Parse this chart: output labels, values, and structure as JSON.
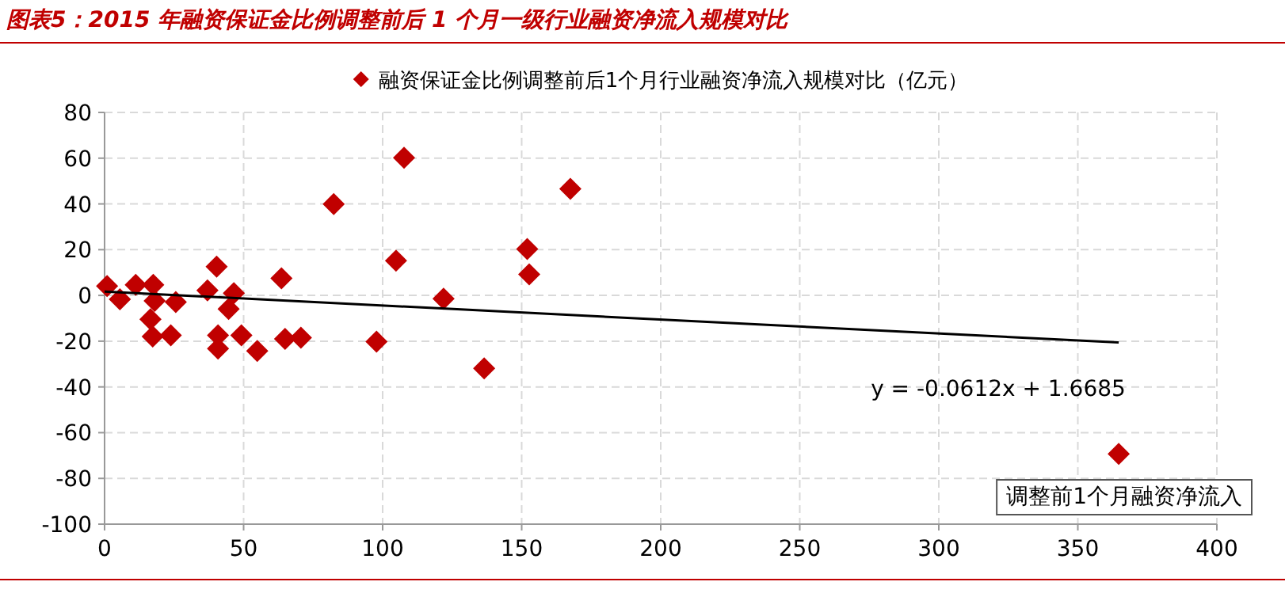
{
  "chart_data": {
    "type": "scatter",
    "title": "图表5：2015 年融资保证金比例调整前后 1 个月一级行业融资净流入规模对比",
    "xlim": [
      0,
      400
    ],
    "ylim": [
      -100,
      80
    ],
    "xticks": [
      0,
      50,
      100,
      150,
      200,
      250,
      300,
      350,
      400
    ],
    "yticks": [
      -100,
      -80,
      -60,
      -40,
      -20,
      0,
      20,
      40,
      60,
      80
    ],
    "grid": true,
    "legend": "top",
    "series": [
      {
        "name": "融资保证金比例调整前后1个月行业融资净流入规模对比（亿元）",
        "marker": "diamond",
        "color": "#c00000",
        "x": [
          0.9,
          5.5,
          11.2,
          17.5,
          18.0,
          16.5,
          17.3,
          23.8,
          25.6,
          37.0,
          40.3,
          40.8,
          40.8,
          46.5,
          44.6,
          49.2,
          54.9,
          63.6,
          64.9,
          70.6,
          82.4,
          97.8,
          104.8,
          107.7,
          121.9,
          136.5,
          152.0,
          152.7,
          167.5,
          364.7
        ],
        "values": [
          4.1,
          -1.7,
          4.6,
          4.6,
          -2.4,
          -10.4,
          -18.0,
          -17.4,
          -2.9,
          2.2,
          12.6,
          -17.4,
          -23.2,
          1.0,
          -5.9,
          -17.4,
          -24.3,
          7.5,
          -19.0,
          -18.5,
          39.9,
          -20.2,
          15.2,
          60.2,
          -1.4,
          -31.9,
          20.3,
          9.2,
          46.6,
          -69.3
        ]
      },
      {
        "type": "line",
        "color": "#000000",
        "x": [
          0,
          364.7
        ],
        "values": [
          1.7,
          -20.6
        ]
      }
    ],
    "annotations": [
      "y = -0.0612x + 1.6685",
      "调整前1个月融资净流入"
    ]
  }
}
